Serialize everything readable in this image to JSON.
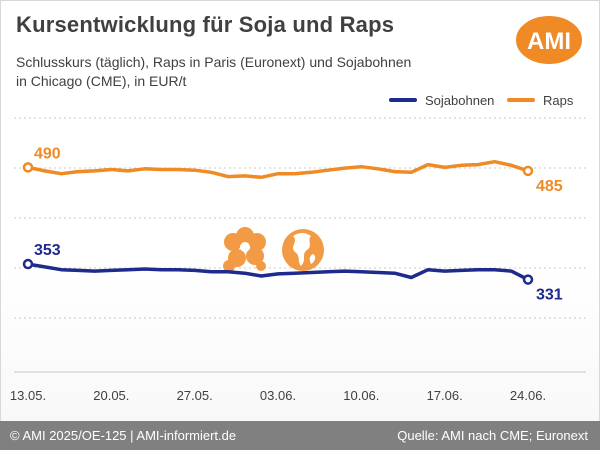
{
  "title": "Kursentwicklung für Soja und Raps",
  "subtitle_line1": "Schlusskurs (täglich), Raps in Paris (Euronext) und Sojabohnen",
  "subtitle_line2": "in Chicago (CME), in EUR/t",
  "logo_text": "AMI",
  "footer_left": "© AMI 2025/OE-125 | AMI-informiert.de",
  "footer_right": "Quelle: AMI nach CME; Euronext",
  "colors": {
    "raps": "#F08A24",
    "soja": "#1E2A8C",
    "logo_bg": "#F08A24",
    "grid": "#c8c8c8",
    "footer": "#808080"
  },
  "chart_data": {
    "type": "line",
    "title": "Kursentwicklung für Soja und Raps",
    "ylabel": "",
    "xlabel": "",
    "ylim": [
      200,
      560
    ],
    "grid": "horizontal dashed",
    "legend_position": "top-right",
    "x_ticks": [
      "13.05.",
      "20.05.",
      "27.05.",
      "03.06.",
      "10.06.",
      "17.06.",
      "24.06."
    ],
    "x": [
      "13.05.",
      "14.05.",
      "15.05.",
      "16.05.",
      "17.05.",
      "20.05.",
      "21.05.",
      "22.05.",
      "23.05.",
      "24.05.",
      "27.05.",
      "28.05.",
      "29.05.",
      "30.05.",
      "31.05.",
      "03.06.",
      "04.06.",
      "05.06.",
      "06.06.",
      "07.06.",
      "10.06.",
      "11.06.",
      "12.06.",
      "13.06.",
      "14.06.",
      "17.06.",
      "18.06.",
      "19.06.",
      "20.06.",
      "21.06.",
      "24.06."
    ],
    "series": [
      {
        "name": "Sojabohnen",
        "color": "#1E2A8C",
        "first_label": "353",
        "last_label": "331",
        "values": [
          353,
          349,
          345,
          344,
          343,
          344,
          345,
          346,
          345,
          345,
          344,
          342,
          342,
          340,
          336,
          339,
          340,
          341,
          342,
          343,
          342,
          341,
          340,
          334,
          345,
          343,
          344,
          345,
          345,
          343,
          331
        ]
      },
      {
        "name": "Raps",
        "color": "#F08A24",
        "first_label": "490",
        "last_label": "485",
        "values": [
          490,
          485,
          481,
          484,
          485,
          487,
          485,
          488,
          487,
          487,
          486,
          483,
          477,
          478,
          476,
          481,
          481,
          483,
          486,
          489,
          491,
          488,
          484,
          483,
          494,
          490,
          493,
          494,
          498,
          493,
          485
        ]
      }
    ]
  }
}
